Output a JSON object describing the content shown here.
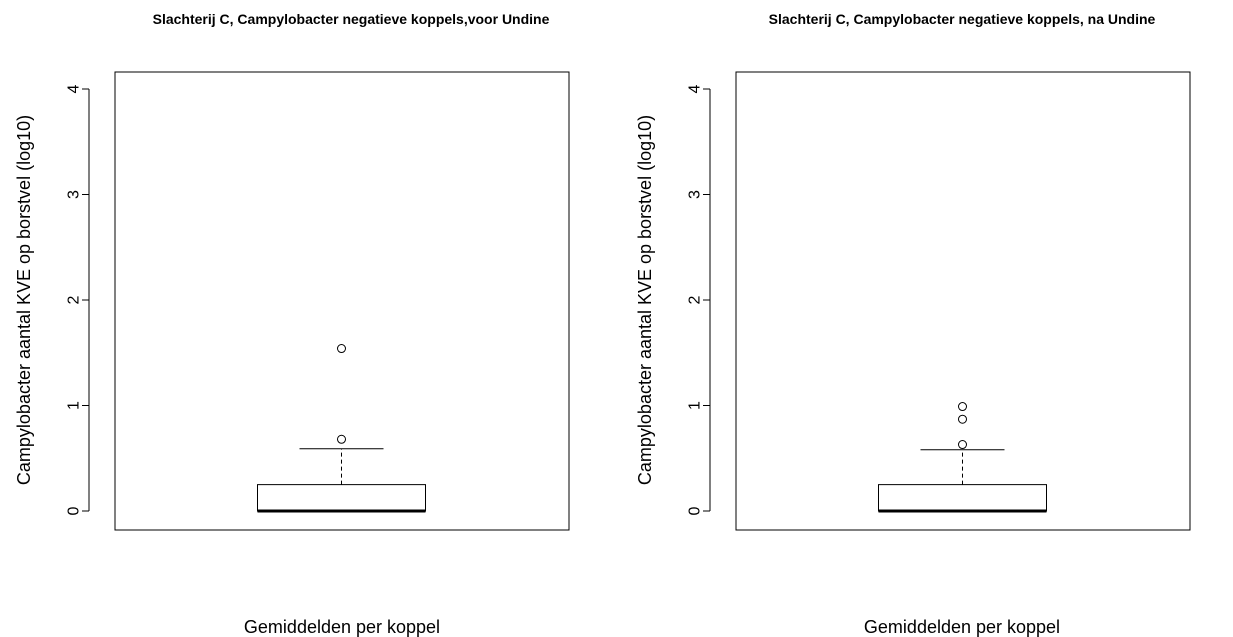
{
  "chart_data": [
    {
      "type": "boxplot",
      "title": "Slachterij C, Campylobacter negatieve koppels,voor Undine",
      "xlabel": "Gemiddelden per koppel",
      "ylabel": "Campylobacter aantal KVE op borstvel (log10)",
      "ylim": [
        -0.15,
        4.15
      ],
      "yticks": [
        0,
        1,
        2,
        3,
        4
      ],
      "box": {
        "min": 0,
        "q1": 0,
        "median": 0,
        "q3": 0.25,
        "whisker_high": 0.59
      },
      "outliers": [
        0.68,
        1.54
      ],
      "grid": false
    },
    {
      "type": "boxplot",
      "title": "Slachterij C, Campylobacter negatieve koppels, na Undine",
      "xlabel": "Gemiddelden per koppel",
      "ylabel": "Campylobacter aantal KVE op borstvel (log10)",
      "ylim": [
        -0.15,
        4.15
      ],
      "yticks": [
        0,
        1,
        2,
        3,
        4
      ],
      "box": {
        "min": 0,
        "q1": 0,
        "median": 0,
        "q3": 0.25,
        "whisker_high": 0.58
      },
      "outliers": [
        0.63,
        0.87,
        0.99
      ],
      "grid": false
    }
  ]
}
